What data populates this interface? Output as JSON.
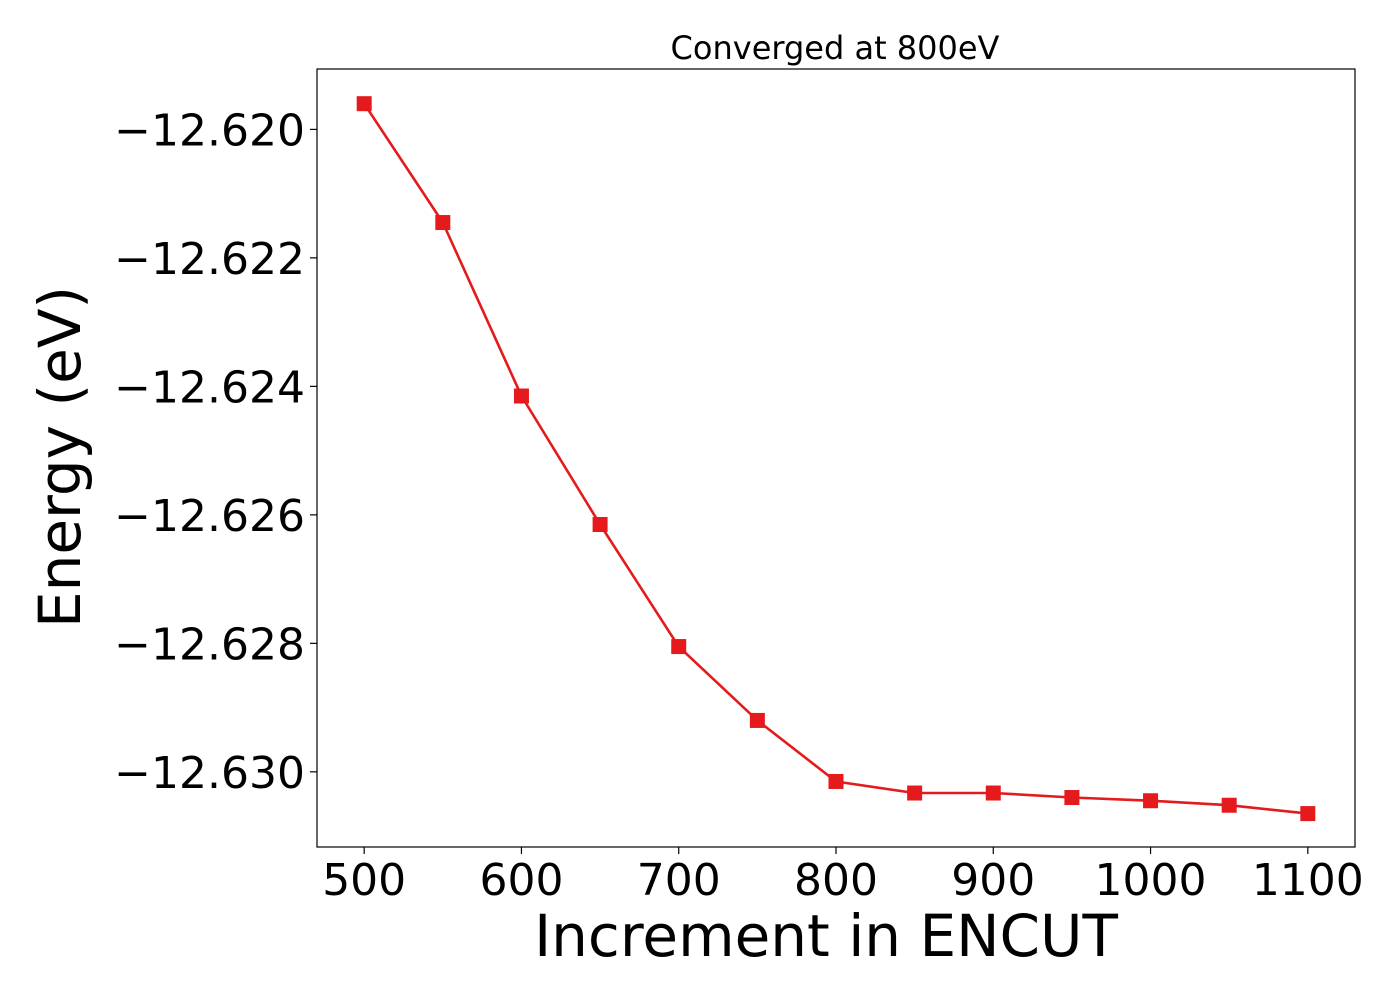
{
  "chart_data": {
    "type": "line",
    "title": "Converged at 800eV",
    "xlabel": "Increment in ENCUT",
    "ylabel": "Energy (eV)",
    "x": [
      500,
      550,
      600,
      650,
      700,
      750,
      800,
      850,
      900,
      950,
      1000,
      1050,
      1100
    ],
    "series": [
      {
        "values": [
          -12.6196,
          -12.62145,
          -12.62415,
          -12.62615,
          -12.62805,
          -12.6292,
          -12.63015,
          -12.63033,
          -12.63033,
          -12.6304,
          -12.63045,
          -12.63052,
          -12.63065
        ],
        "color": "#e41a1c",
        "marker": "square"
      }
    ],
    "xlim": [
      470,
      1130
    ],
    "ylim": [
      -12.63117,
      -12.61906
    ],
    "xticks": [
      500,
      600,
      700,
      800,
      900,
      1000,
      1100
    ],
    "xtick_labels": [
      "500",
      "600",
      "700",
      "800",
      "900",
      "1000",
      "1100"
    ],
    "yticks": [
      -12.62,
      -12.622,
      -12.624,
      -12.626,
      -12.628,
      -12.63
    ],
    "ytick_labels": [
      "−12.620",
      "−12.622",
      "−12.624",
      "−12.626",
      "−12.628",
      "−12.630"
    ],
    "grid": false,
    "legend": false
  }
}
